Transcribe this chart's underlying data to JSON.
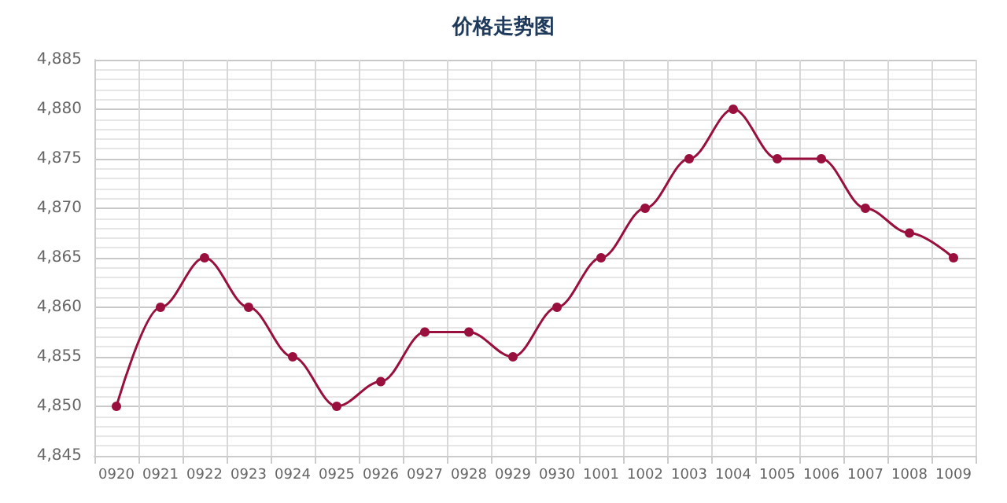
{
  "chart_data": {
    "type": "line",
    "title": "价格走势图",
    "categories": [
      "0920",
      "0921",
      "0922",
      "0923",
      "0924",
      "0925",
      "0926",
      "0927",
      "0928",
      "0929",
      "0930",
      "1001",
      "1002",
      "1003",
      "1004",
      "1005",
      "1006",
      "1007",
      "1008",
      "1009"
    ],
    "series": [
      {
        "color": "#990f3d",
        "values": [
          4850,
          4860,
          4865,
          4860,
          4855,
          4850,
          4852.5,
          4857.5,
          4857.5,
          4855,
          4860,
          4865,
          4870,
          4875,
          4880,
          4875,
          4875,
          4870,
          4867.5,
          4865
        ]
      }
    ],
    "ylim": [
      4845,
      4885
    ],
    "yticks": [
      {
        "value": 4845,
        "label": "4,845"
      },
      {
        "value": 4850,
        "label": "4,850"
      },
      {
        "value": 4855,
        "label": "4,855"
      },
      {
        "value": 4860,
        "label": "4,860"
      },
      {
        "value": 4865,
        "label": "4,865"
      },
      {
        "value": 4870,
        "label": "4,870"
      },
      {
        "value": 4875,
        "label": "4,875"
      },
      {
        "value": 4880,
        "label": "4,880"
      },
      {
        "value": 4885,
        "label": "4,885"
      }
    ],
    "grid": true,
    "marker": "circle",
    "line_style": "solid"
  }
}
